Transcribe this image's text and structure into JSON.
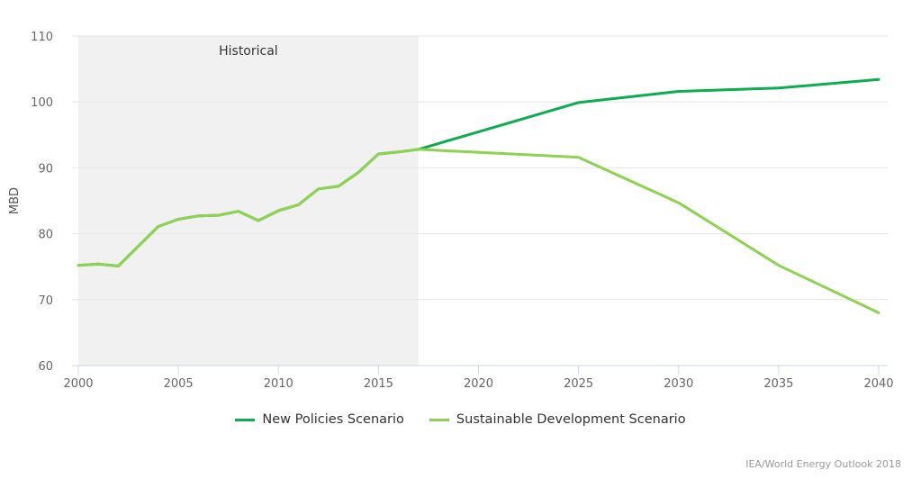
{
  "chart_data": {
    "type": "line",
    "title": "",
    "xlabel": "",
    "ylabel": "MBD",
    "xlim": [
      2000,
      2040
    ],
    "ylim": [
      60,
      110
    ],
    "x_ticks": [
      2000,
      2005,
      2010,
      2015,
      2020,
      2025,
      2030,
      2035,
      2040
    ],
    "y_ticks": [
      60,
      70,
      80,
      90,
      100,
      110
    ],
    "grid": "horizontal",
    "legend_position": "bottom-center",
    "annotations": [
      {
        "type": "shaded-band",
        "label": "Historical",
        "x_range": [
          2000,
          2017
        ],
        "color": "#f1f1f1"
      }
    ],
    "series": [
      {
        "name": "New Policies Scenario",
        "color": "#0bad4e",
        "points": [
          [
            2000,
            75.2
          ],
          [
            2001,
            75.4
          ],
          [
            2002,
            75.1
          ],
          [
            2004,
            81.1
          ],
          [
            2005,
            82.2
          ],
          [
            2006,
            82.7
          ],
          [
            2007,
            82.8
          ],
          [
            2008,
            83.4
          ],
          [
            2009,
            82.0
          ],
          [
            2010,
            83.5
          ],
          [
            2011,
            84.4
          ],
          [
            2012,
            86.8
          ],
          [
            2013,
            87.2
          ],
          [
            2014,
            89.3
          ],
          [
            2015,
            92.1
          ],
          [
            2016,
            92.4
          ],
          [
            2017,
            92.8
          ],
          [
            2025,
            99.9
          ],
          [
            2030,
            101.6
          ],
          [
            2035,
            102.1
          ],
          [
            2040,
            103.4
          ]
        ]
      },
      {
        "name": "Sustainable Development Scenario",
        "color": "#8ed24f",
        "points": [
          [
            2000,
            75.2
          ],
          [
            2001,
            75.4
          ],
          [
            2002,
            75.1
          ],
          [
            2004,
            81.1
          ],
          [
            2005,
            82.2
          ],
          [
            2006,
            82.7
          ],
          [
            2007,
            82.8
          ],
          [
            2008,
            83.4
          ],
          [
            2009,
            82.0
          ],
          [
            2010,
            83.5
          ],
          [
            2011,
            84.4
          ],
          [
            2012,
            86.8
          ],
          [
            2013,
            87.2
          ],
          [
            2014,
            89.3
          ],
          [
            2015,
            92.1
          ],
          [
            2016,
            92.4
          ],
          [
            2017,
            92.8
          ],
          [
            2025,
            91.6
          ],
          [
            2030,
            84.7
          ],
          [
            2035,
            75.2
          ],
          [
            2040,
            68.0
          ]
        ]
      }
    ],
    "source": "IEA/World Energy Outlook 2018"
  }
}
